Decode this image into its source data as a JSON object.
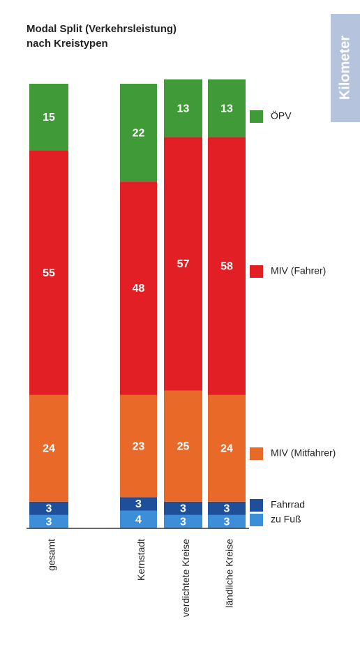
{
  "chart_data": {
    "type": "stacked_bar",
    "title_lines": [
      "Modal Split (Verkehrsleistung)",
      "nach Kreistypen"
    ],
    "tab_label": "Kilometer",
    "categories": [
      "gesamt",
      "Kernstadt",
      "verdichtete Kreise",
      "ländliche Kreise"
    ],
    "series": [
      {
        "name": "zu Fuß",
        "color": "#3d8ed8",
        "values": [
          3,
          4,
          3,
          3
        ]
      },
      {
        "name": "Fahrrad",
        "color": "#1d4f9b",
        "values": [
          3,
          3,
          3,
          3
        ]
      },
      {
        "name": "MIV (Mitfahrer)",
        "color": "#e96a28",
        "values": [
          24,
          23,
          25,
          24
        ]
      },
      {
        "name": "MIV (Fahrer)",
        "color": "#e31f26",
        "values": [
          55,
          48,
          57,
          58
        ]
      },
      {
        "name": "ÖPV",
        "color": "#3f9a37",
        "values": [
          15,
          22,
          13,
          13
        ]
      }
    ],
    "ylim": [
      0,
      100
    ]
  }
}
